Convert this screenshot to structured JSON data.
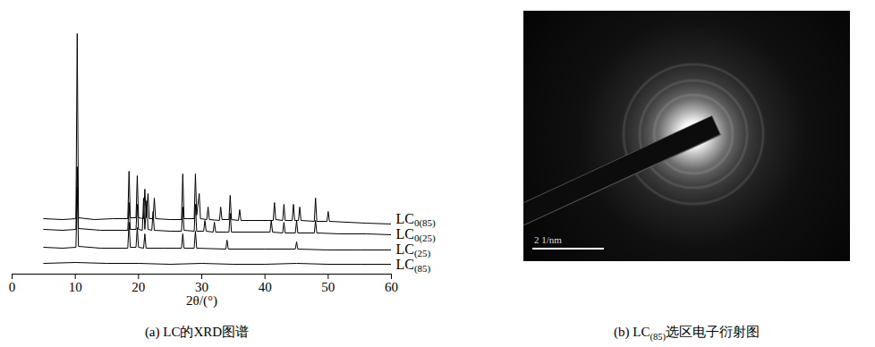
{
  "chart_data": {
    "type": "line",
    "caption": "(a) LC的XRD图谱",
    "x_label": "2θ/(°)",
    "xlim": [
      0,
      60
    ],
    "xticks": [
      0,
      10,
      20,
      30,
      40,
      50,
      60
    ],
    "ylim": [
      0,
      280
    ],
    "tick_labels": "x",
    "grid": false,
    "series": [
      {
        "name": "LC0(85)",
        "color": "#000000",
        "x": [
          5,
          8,
          10.1,
          10.3,
          10.5,
          13,
          16,
          18.3,
          18.5,
          18.7,
          19.6,
          19.8,
          20,
          20.8,
          21,
          21.2,
          21.5,
          21.7,
          22.3,
          22.5,
          22.7,
          25,
          26.8,
          27,
          27.2,
          28.8,
          29,
          29.2,
          29.6,
          29.8,
          30.8,
          31,
          31.2,
          32.8,
          33,
          33.2,
          34.3,
          34.5,
          34.7,
          35.8,
          36,
          36.2,
          38,
          41.3,
          41.5,
          41.7,
          42.8,
          43,
          43.2,
          44.3,
          44.5,
          44.7,
          45.3,
          45.5,
          45.7,
          47.8,
          48,
          48.2,
          49.8,
          50,
          50.2,
          53,
          56,
          60
        ],
        "values": [
          62,
          61,
          62,
          269,
          63,
          61,
          62,
          62,
          115,
          63,
          63,
          110,
          63,
          62,
          95,
          63,
          90,
          62,
          62,
          85,
          62,
          61,
          61,
          112,
          62,
          62,
          112,
          66,
          90,
          62,
          61,
          75,
          61,
          60,
          75,
          61,
          61,
          88,
          61,
          60,
          72,
          60,
          60,
          60,
          80,
          61,
          60,
          78,
          60,
          60,
          78,
          60,
          60,
          75,
          60,
          59,
          85,
          59,
          59,
          70,
          59,
          58,
          57,
          56
        ]
      },
      {
        "name": "LC0(25)",
        "color": "#000000",
        "x": [
          5,
          8,
          10.1,
          10.3,
          10.5,
          14,
          18.3,
          18.5,
          18.7,
          19.6,
          19.8,
          20,
          20.6,
          20.8,
          21,
          21.3,
          21.5,
          22.1,
          22.3,
          22.5,
          25,
          26.8,
          27,
          27.2,
          28.8,
          29,
          29.2,
          30.3,
          30.5,
          30.7,
          31.8,
          32,
          32.2,
          34.3,
          34.5,
          34.7,
          38,
          40.8,
          41,
          41.2,
          42.8,
          43,
          43.2,
          44.8,
          45,
          45.2,
          47.8,
          48,
          48.2,
          52,
          56,
          60
        ],
        "values": [
          50,
          49,
          50,
          120,
          51,
          49,
          49,
          80,
          50,
          50,
          78,
          50,
          49,
          85,
          50,
          82,
          50,
          49,
          70,
          49,
          48,
          48,
          75,
          49,
          48,
          78,
          48,
          48,
          60,
          48,
          47,
          58,
          47,
          47,
          68,
          47,
          47,
          47,
          60,
          47,
          46,
          58,
          46,
          46,
          60,
          46,
          46,
          60,
          46,
          45,
          45,
          44
        ]
      },
      {
        "name": "LC(25)",
        "color": "#000000",
        "x": [
          5,
          8,
          10.1,
          10.3,
          10.5,
          14,
          18.3,
          18.5,
          18.7,
          19.6,
          19.8,
          20,
          20.8,
          21,
          21.2,
          24,
          26.8,
          27,
          27.2,
          28.8,
          29,
          29.2,
          33.8,
          34,
          34.2,
          40,
          44.8,
          45,
          45.2,
          50,
          55,
          60
        ],
        "values": [
          30,
          29,
          30,
          97,
          31,
          29,
          29,
          58,
          30,
          30,
          52,
          30,
          29,
          45,
          29,
          29,
          29,
          45,
          29,
          29,
          48,
          29,
          28,
          38,
          28,
          28,
          28,
          36,
          28,
          27,
          27,
          27
        ]
      },
      {
        "name": "LC(85)",
        "color": "#000000",
        "x": [
          5,
          10,
          15,
          20,
          25,
          30,
          35,
          40,
          45,
          50,
          55,
          60
        ],
        "values": [
          12,
          13,
          12,
          12,
          11,
          12,
          11,
          11,
          12,
          11,
          11,
          11
        ]
      }
    ]
  },
  "image_panel": {
    "caption": "(b) LC(85)选区电子衍射图",
    "scale_bar_label": "2 1/nm"
  }
}
